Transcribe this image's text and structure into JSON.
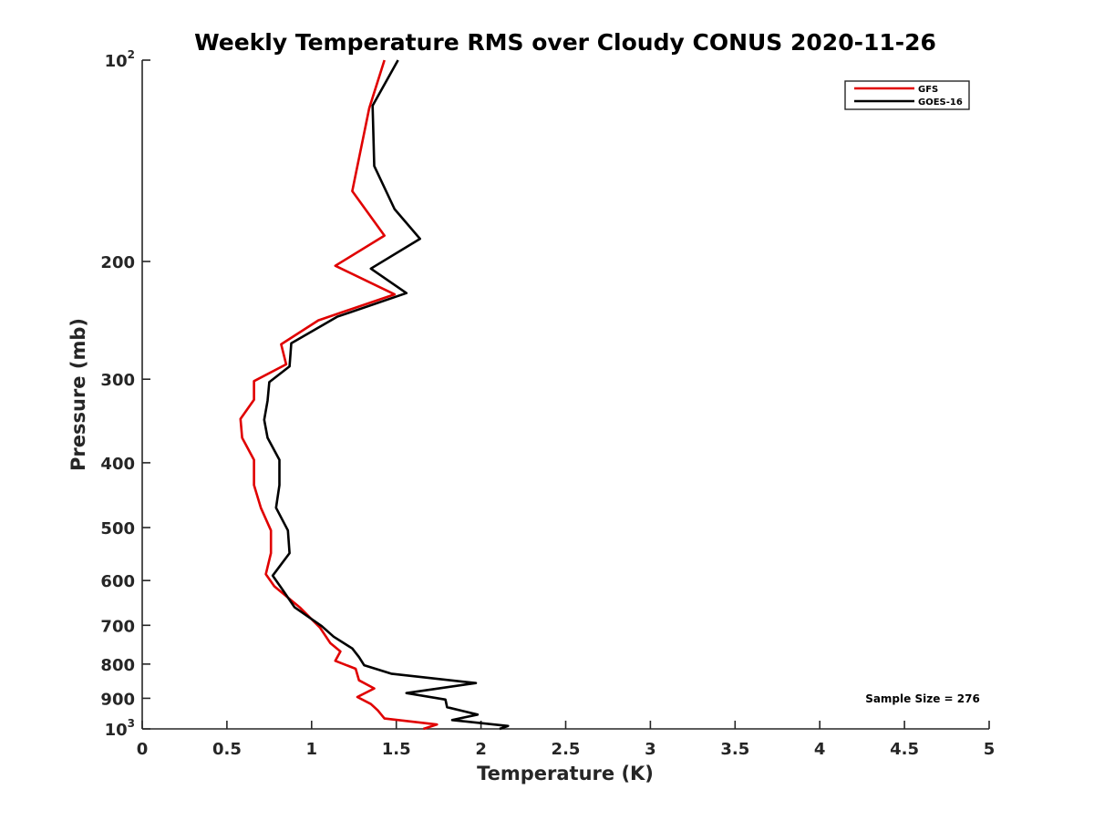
{
  "chart_data": {
    "type": "line",
    "title": "Weekly Temperature RMS over Cloudy CONUS 2020-11-26",
    "xlabel": "Temperature (K)",
    "ylabel": "Pressure (mb)",
    "xlim": [
      0,
      5
    ],
    "ylim": [
      100,
      1000
    ],
    "y_scale": "log",
    "y_reversed": true,
    "x_ticks": [
      0,
      0.5,
      1,
      1.5,
      2,
      2.5,
      3,
      3.5,
      4,
      4.5,
      5
    ],
    "x_tick_labels": [
      "0",
      "0.5",
      "1",
      "1.5",
      "2",
      "2.5",
      "3",
      "3.5",
      "4",
      "4.5",
      "5"
    ],
    "y_ticks": [
      {
        "value": 100,
        "base": "10",
        "exp": "2"
      },
      {
        "value": 200,
        "base": "200",
        "exp": ""
      },
      {
        "value": 300,
        "base": "300",
        "exp": ""
      },
      {
        "value": 400,
        "base": "400",
        "exp": ""
      },
      {
        "value": 500,
        "base": "500",
        "exp": ""
      },
      {
        "value": 600,
        "base": "600",
        "exp": ""
      },
      {
        "value": 700,
        "base": "700",
        "exp": ""
      },
      {
        "value": 800,
        "base": "800",
        "exp": ""
      },
      {
        "value": 900,
        "base": "900",
        "exp": ""
      },
      {
        "value": 1000,
        "base": "10",
        "exp": "3"
      }
    ],
    "grid": false,
    "legend_position": "top-right",
    "annotation": "Sample Size = 276",
    "series": [
      {
        "name": "GFS",
        "color": "#e00000",
        "x": [
          1.43,
          1.34,
          1.24,
          1.43,
          1.14,
          1.49,
          1.04,
          0.82,
          0.85,
          0.66,
          0.66,
          0.58,
          0.59,
          0.66,
          0.66,
          0.7,
          0.76,
          0.76,
          0.73,
          0.78,
          0.93,
          1.05,
          1.11,
          1.17,
          1.14,
          1.26,
          1.28,
          1.37,
          1.27,
          1.35,
          1.39,
          1.43,
          1.74,
          1.66
        ],
        "y": [
          100,
          118,
          157,
          183,
          203,
          224,
          245,
          266,
          285,
          302,
          322,
          344,
          367,
          396,
          432,
          467,
          505,
          546,
          587,
          612,
          658,
          706,
          744,
          766,
          791,
          813,
          846,
          870,
          896,
          918,
          938,
          965,
          985,
          1000
        ]
      },
      {
        "name": "GOES-16",
        "color": "#000000",
        "x": [
          1.51,
          1.36,
          1.37,
          1.49,
          1.64,
          1.35,
          1.56,
          1.15,
          0.88,
          0.87,
          0.75,
          0.74,
          0.72,
          0.74,
          0.81,
          0.81,
          0.79,
          0.86,
          0.87,
          0.77,
          0.82,
          0.9,
          1.06,
          1.13,
          1.24,
          1.28,
          1.31,
          1.47,
          1.97,
          1.56,
          1.79,
          1.8,
          1.98,
          1.83,
          2.16,
          2.11
        ],
        "y": [
          100,
          117,
          144,
          167,
          185,
          205,
          223,
          242,
          265,
          287,
          303,
          323,
          345,
          367,
          396,
          432,
          467,
          505,
          546,
          590,
          615,
          658,
          702,
          728,
          758,
          781,
          803,
          827,
          854,
          884,
          904,
          928,
          952,
          970,
          990,
          1000
        ]
      }
    ]
  }
}
